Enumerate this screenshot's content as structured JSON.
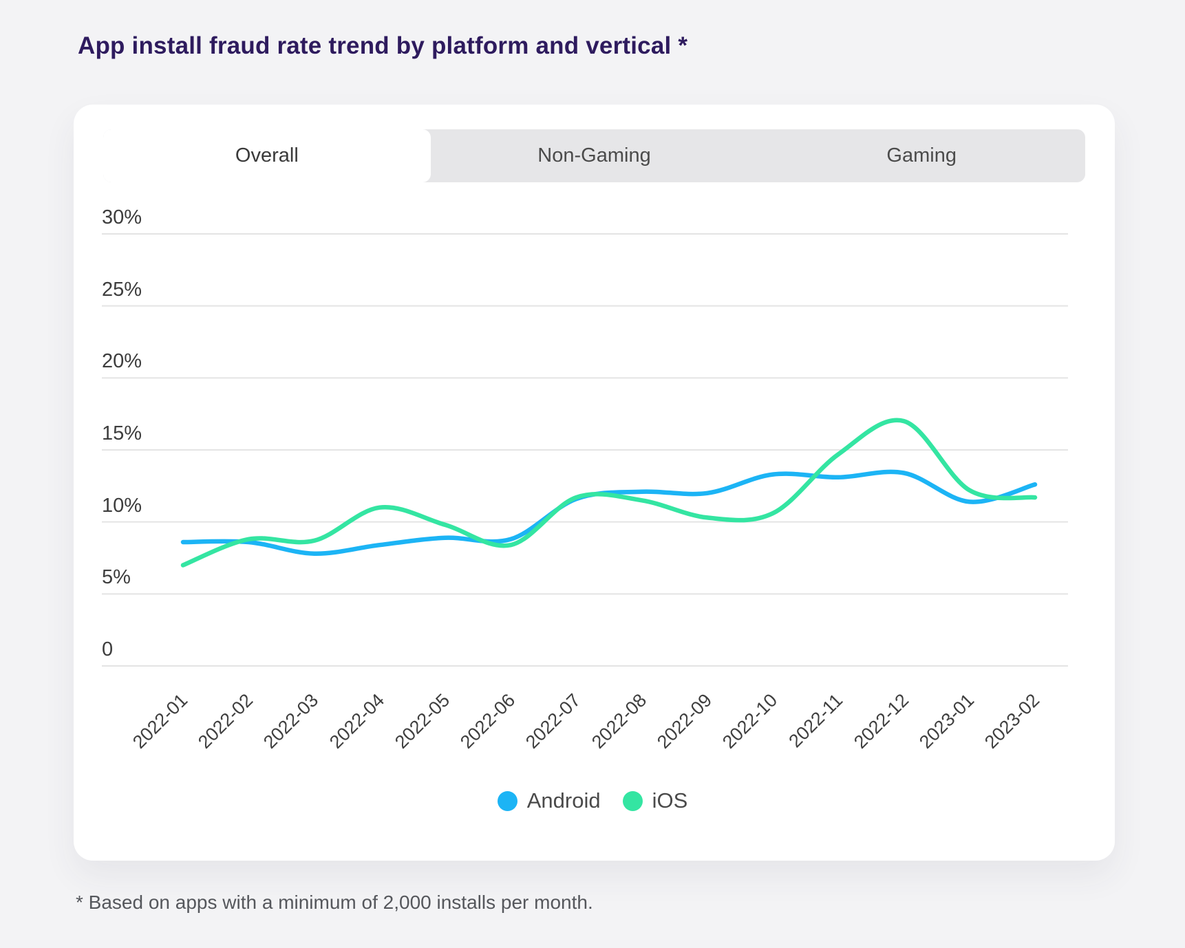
{
  "page": {
    "title": "App install fraud rate trend by platform and vertical *",
    "footnote": "* Based on apps with a minimum of 2,000 installs per month.",
    "background_color": "#f3f3f5",
    "title_color": "#2e1b5e"
  },
  "tabs": [
    {
      "label": "Overall",
      "active": true
    },
    {
      "label": "Non-Gaming",
      "active": false
    },
    {
      "label": "Gaming",
      "active": false
    }
  ],
  "chart_data": {
    "type": "line",
    "title": "App install fraud rate trend by platform and vertical *",
    "x": [
      "2022-01",
      "2022-02",
      "2022-03",
      "2022-04",
      "2022-05",
      "2022-06",
      "2022-07",
      "2022-08",
      "2022-09",
      "2022-10",
      "2022-11",
      "2022-12",
      "2023-01",
      "2023-02"
    ],
    "series": [
      {
        "name": "Android",
        "color": "#1cb4f5",
        "values": [
          8.6,
          8.6,
          7.8,
          8.4,
          8.9,
          8.8,
          11.6,
          12.1,
          12.0,
          13.3,
          13.1,
          13.4,
          11.4,
          12.6
        ]
      },
      {
        "name": "iOS",
        "color": "#34e5a2",
        "values": [
          7.0,
          8.8,
          8.7,
          11.0,
          9.8,
          8.4,
          11.7,
          11.5,
          10.3,
          10.6,
          14.7,
          17.0,
          12.2,
          11.7
        ]
      }
    ],
    "y_ticks": [
      {
        "label": "30%",
        "value": 30
      },
      {
        "label": "25%",
        "value": 25
      },
      {
        "label": "20%",
        "value": 20
      },
      {
        "label": "15%",
        "value": 15
      },
      {
        "label": "10%",
        "value": 10
      },
      {
        "label": "5%",
        "value": 5
      },
      {
        "label": "0",
        "value": 0
      }
    ],
    "ylabel": "",
    "xlabel": "",
    "ylim": [
      0,
      30
    ],
    "unit": "%",
    "grid": "horizontal",
    "line_smoothing": true,
    "legend_position": "bottom"
  }
}
